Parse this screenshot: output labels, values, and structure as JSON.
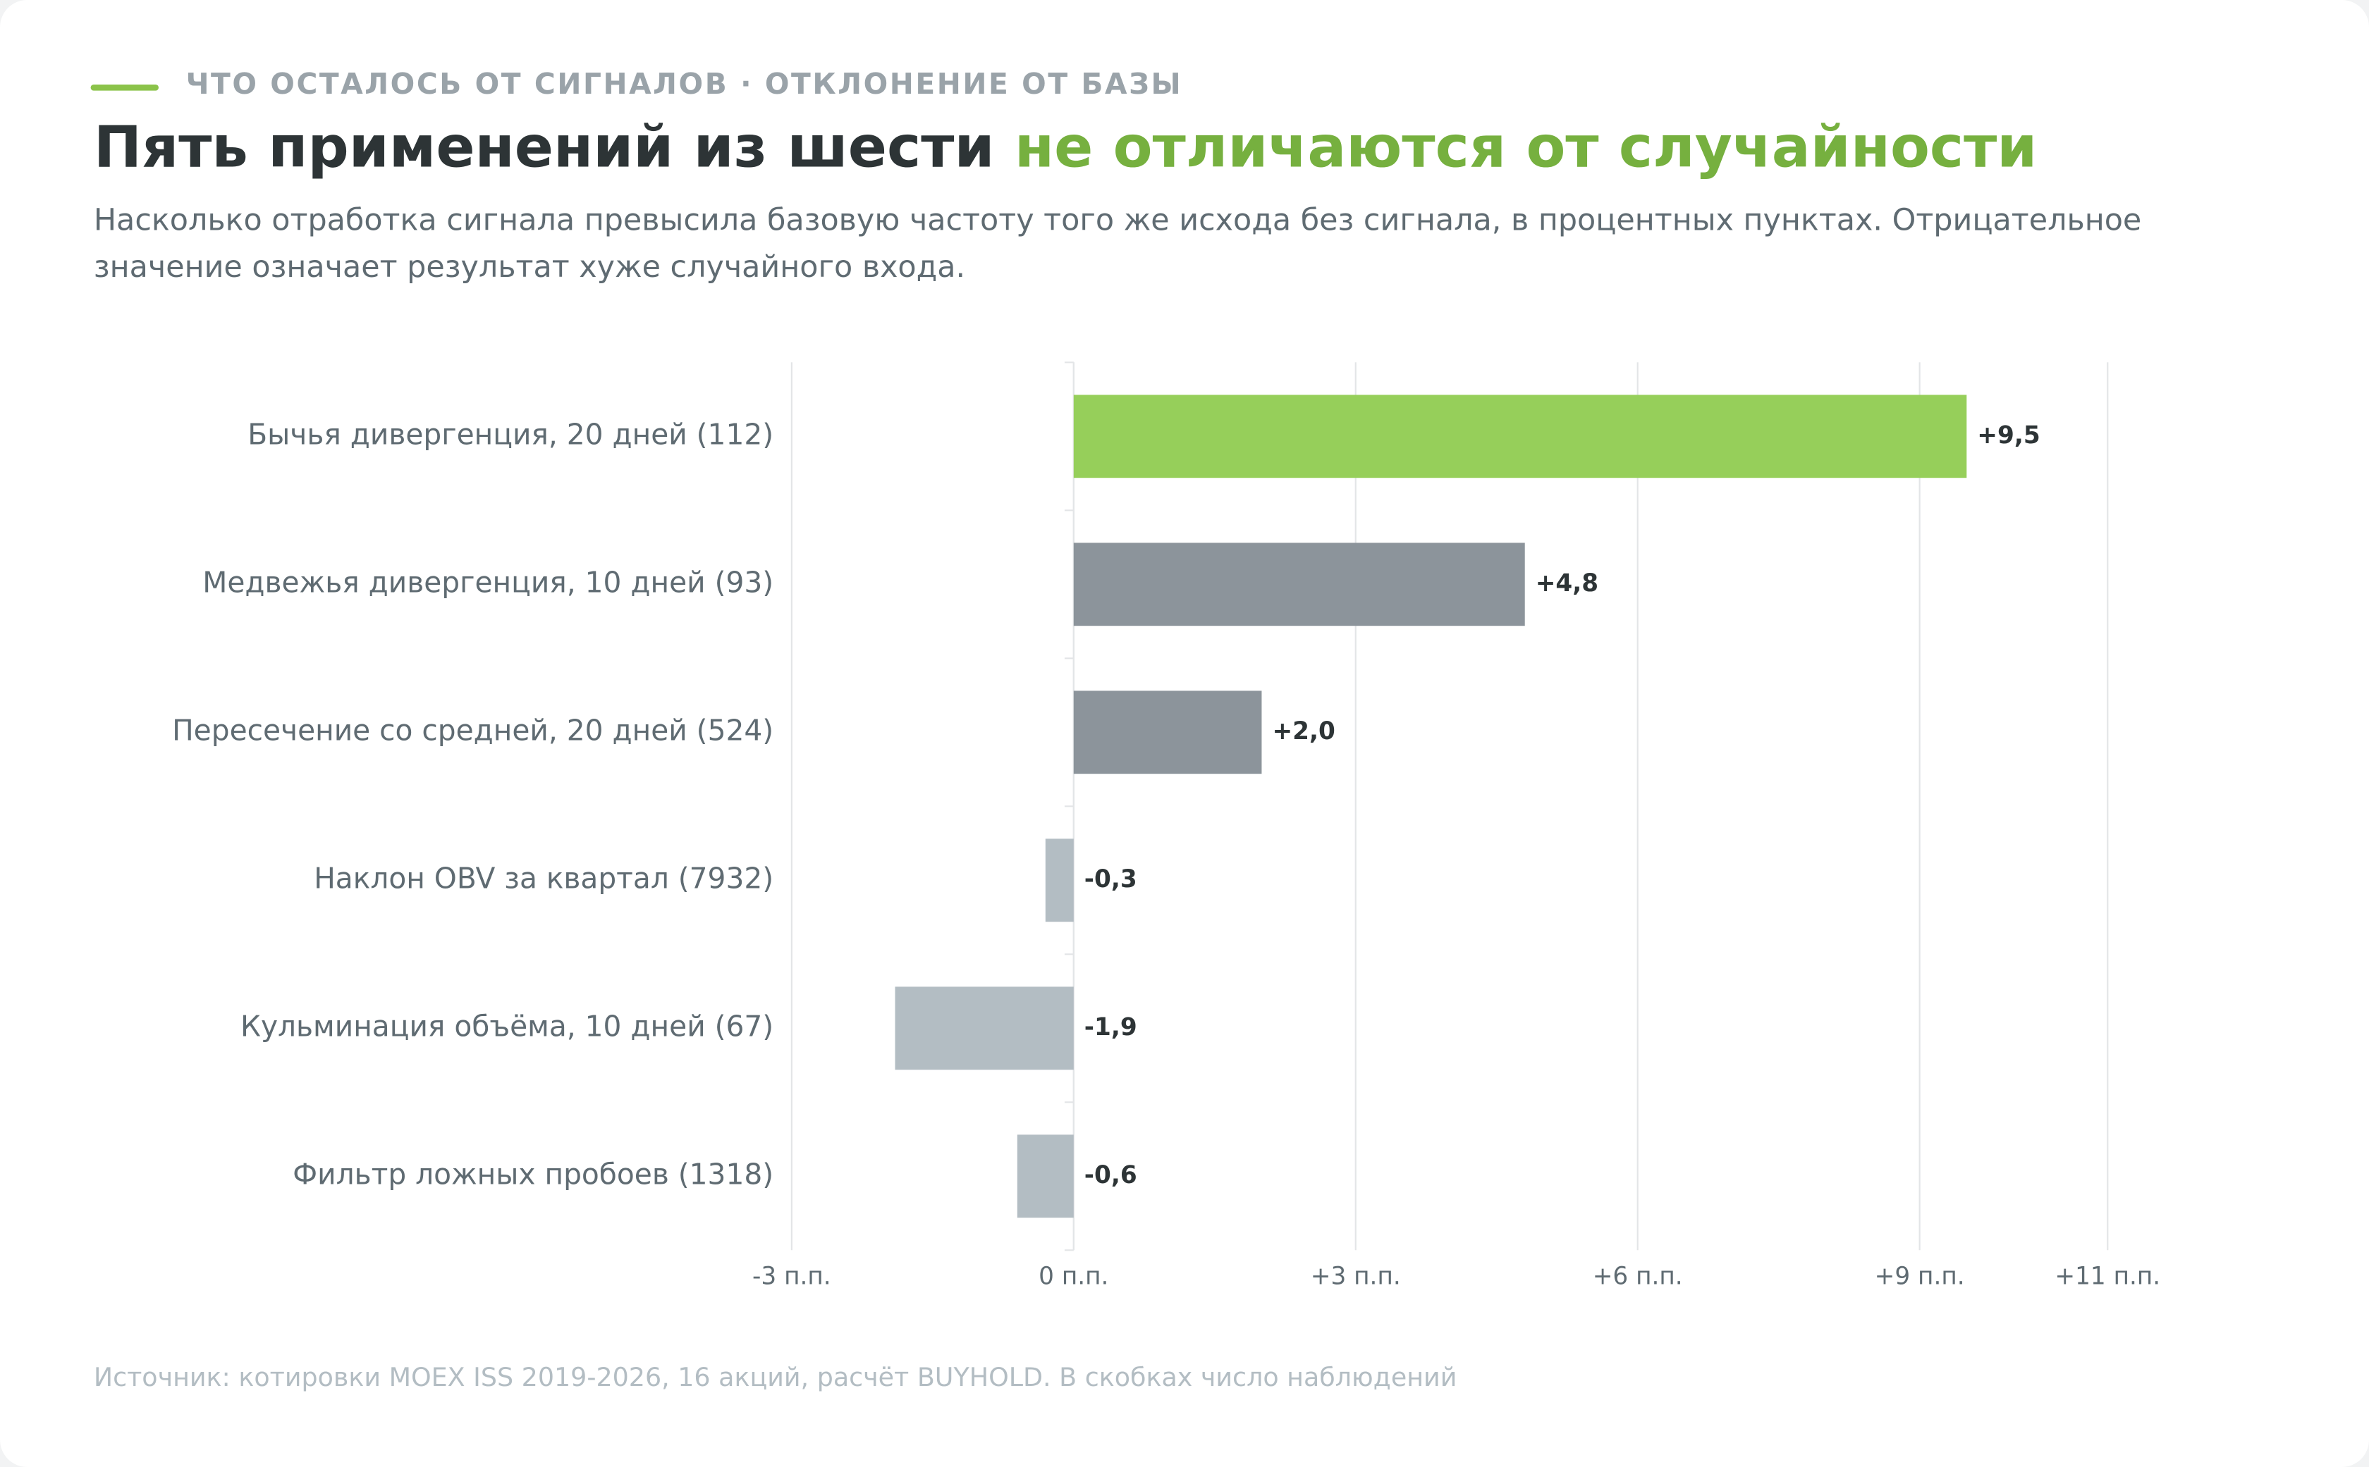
{
  "chart_data": {
    "type": "hbar",
    "eyebrow": "ЧТО ОСТАЛОСЬ ОТ СИГНАЛОВ · ОТКЛОНЕНИЕ ОТ БАЗЫ",
    "title_parts": [
      "Пять применений из шести",
      "не отличаются от случайности"
    ],
    "subtitle_lines": [
      "Насколько отработка сигнала превысила базовую частоту того же исхода без сигнала, в процентных пунктах. Отрицательное",
      "значение означает результат хуже случайного входа."
    ],
    "categories": [
      "Бычья дивергенция, 20 дней (112)",
      "Медвежья дивергенция, 10 дней (93)",
      "Пересечение со средней, 20 дней (524)",
      "Наклон OBV за квартал (7932)",
      "Кульминация объёма, 10 дней (67)",
      "Фильтр ложных пробоев (1318)"
    ],
    "values": [
      9.5,
      4.8,
      2.0,
      -0.3,
      -1.9,
      -0.6
    ],
    "value_labels": [
      "+9,5",
      "+4,8",
      "+2,0",
      "-0,3",
      "-1,9",
      "-0,6"
    ],
    "colors": [
      "#96cf5a",
      "#8c949b",
      "#8c949b",
      "#b3bdc3",
      "#b3bdc3",
      "#b3bdc3"
    ],
    "xlim": [
      -3,
      11
    ],
    "xticks": [
      {
        "value": -3,
        "label": "-3 п.п."
      },
      {
        "value": 0,
        "label": "0 п.п."
      },
      {
        "value": 3,
        "label": "+3 п.п."
      },
      {
        "value": 6,
        "label": "+6 п.п."
      },
      {
        "value": 9,
        "label": "+9 п.п."
      },
      {
        "value": 11,
        "label": "+11 п.п."
      }
    ],
    "grid": true,
    "source": "Источник: котировки MOEX ISS 2019-2026, 16 акций, расчёт BUYHOLD. В скобках число наблюдений"
  }
}
